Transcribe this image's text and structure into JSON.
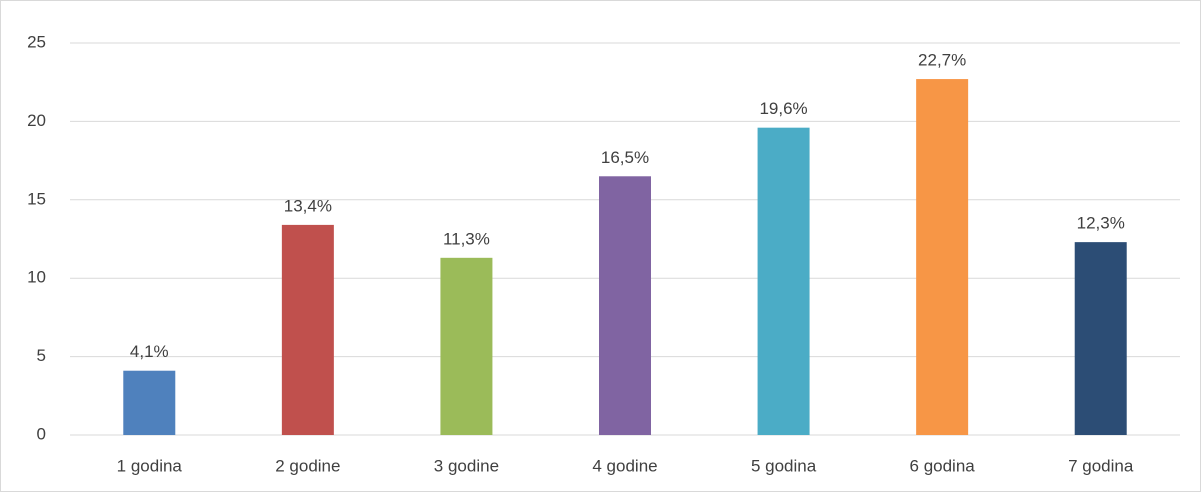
{
  "chart_data": {
    "type": "bar",
    "categories": [
      "1 godina",
      "2 godine",
      "3 godine",
      "4 godine",
      "5 godina",
      "6 godina",
      "7 godina"
    ],
    "values": [
      4.1,
      13.4,
      11.3,
      16.5,
      19.6,
      22.7,
      12.3
    ],
    "value_labels": [
      "4,1%",
      "13,4%",
      "11,3%",
      "16,5%",
      "19,6%",
      "22,7%",
      "12,3%"
    ],
    "colors": [
      "#4f81bd",
      "#c0504d",
      "#9bbb59",
      "#8064a2",
      "#4bacc6",
      "#f79646",
      "#2c4d75"
    ],
    "ylim": [
      0,
      25
    ],
    "yticks": [
      0,
      5,
      10,
      15,
      20,
      25
    ],
    "grid": true
  }
}
